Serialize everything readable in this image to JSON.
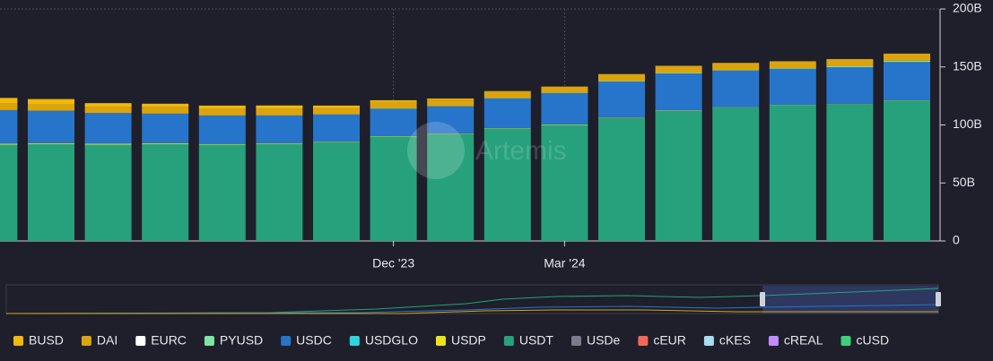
{
  "chart_data": {
    "type": "bar",
    "stacked": true,
    "watermark": "Artemis",
    "categories": [
      null,
      null,
      null,
      null,
      null,
      null,
      null,
      "Dec '23",
      null,
      null,
      "Mar '24",
      null,
      null,
      null,
      null,
      null,
      null
    ],
    "ylim": [
      0,
      200
    ],
    "yticks": [
      0,
      {
        "value": 50,
        "label": "50B"
      },
      {
        "value": 100,
        "label": "100B"
      },
      {
        "value": 150,
        "label": "150B"
      },
      {
        "value": 200,
        "label": "200B"
      }
    ],
    "grid": true,
    "legend": "bottom",
    "series": [
      {
        "name": "BUSD",
        "color": "#f0b90b",
        "values": [
          5,
          4.5,
          3.5,
          3,
          3,
          2.5,
          2,
          1.5,
          1,
          0.5,
          0.2,
          0.1,
          0,
          0,
          0,
          0,
          0
        ]
      },
      {
        "name": "DAI",
        "color": "#dba40e",
        "values": [
          5.5,
          5.5,
          5,
          5.5,
          5.5,
          6,
          5.5,
          5.5,
          5.5,
          5.5,
          5.2,
          6,
          6.2,
          6.2,
          6,
          6.2,
          6.2
        ]
      },
      {
        "name": "EURC",
        "color": "#ffffff",
        "values": [
          0,
          0,
          0,
          0,
          0,
          0,
          0,
          0,
          0,
          0,
          0,
          0,
          0,
          0,
          0,
          0,
          0
        ]
      },
      {
        "name": "PYUSD",
        "color": "#7ee3a6",
        "values": [
          0,
          0,
          0,
          0.1,
          0.1,
          0.2,
          0.2,
          0.3,
          0.3,
          0.3,
          0.3,
          0.4,
          0.4,
          0.5,
          0.6,
          0.8,
          1
        ]
      },
      {
        "name": "USDC",
        "color": "#2775ca",
        "values": [
          29,
          28,
          26.5,
          25.5,
          24.5,
          24,
          23.5,
          23.5,
          23.5,
          25.5,
          27,
          31,
          32,
          31.5,
          31,
          31.5,
          33
        ]
      },
      {
        "name": "USDGLO",
        "color": "#2fd6de",
        "values": [
          0,
          0,
          0,
          0,
          0,
          0,
          0,
          0,
          0,
          0,
          0,
          0,
          0,
          0,
          0,
          0,
          0
        ]
      },
      {
        "name": "USDP",
        "color": "#e9e31c",
        "values": [
          0.8,
          0.8,
          0.8,
          0.7,
          0.6,
          0.6,
          0.5,
          0.5,
          0.5,
          0.4,
          0.4,
          0.4,
          0.4,
          0.3,
          0.3,
          0.3,
          0.3
        ]
      },
      {
        "name": "USDT",
        "color": "#26a17b",
        "values": [
          83,
          83.5,
          83,
          83.5,
          83,
          83.5,
          85,
          90,
          92,
          97,
          100,
          106,
          112,
          115,
          117,
          118,
          121
        ]
      },
      {
        "name": "USDe",
        "color": "#7b7b8e",
        "values": [
          0,
          0,
          0,
          0,
          0,
          0,
          0,
          0,
          0,
          0,
          0,
          0,
          0,
          0,
          0,
          0,
          0
        ]
      },
      {
        "name": "cEUR",
        "color": "#f2695c",
        "values": [
          0,
          0,
          0,
          0,
          0,
          0,
          0,
          0,
          0,
          0,
          0,
          0,
          0,
          0,
          0,
          0,
          0
        ]
      },
      {
        "name": "cKES",
        "color": "#a8dcf0",
        "values": [
          0,
          0,
          0,
          0,
          0,
          0,
          0,
          0,
          0,
          0,
          0,
          0,
          0,
          0,
          0,
          0,
          0
        ]
      },
      {
        "name": "cREAL",
        "color": "#c18cff",
        "values": [
          0,
          0,
          0,
          0,
          0,
          0,
          0,
          0,
          0,
          0,
          0,
          0,
          0,
          0,
          0,
          0,
          0
        ]
      },
      {
        "name": "cUSD",
        "color": "#3dd07a",
        "values": [
          0,
          0,
          0,
          0,
          0,
          0,
          0,
          0,
          0,
          0,
          0,
          0,
          0,
          0,
          0,
          0,
          0
        ]
      }
    ]
  }
}
